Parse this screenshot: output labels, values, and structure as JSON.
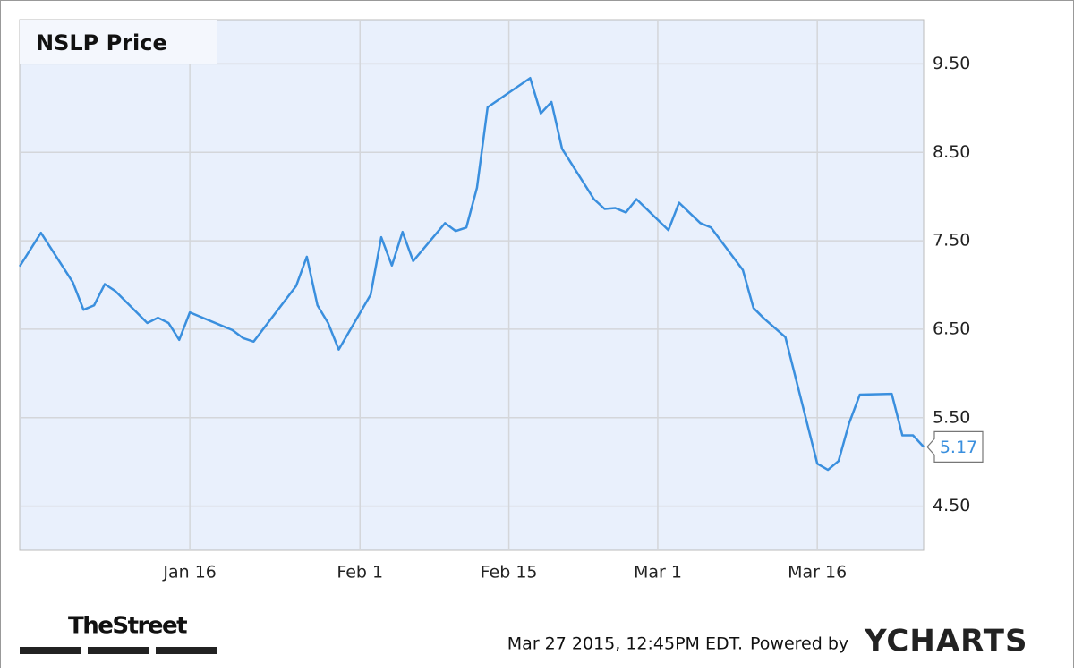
{
  "chart_data": {
    "type": "line",
    "title": "NSLP Price",
    "x": [
      "2014-12-31",
      "2015-01-02",
      "2015-01-05",
      "2015-01-06",
      "2015-01-07",
      "2015-01-08",
      "2015-01-09",
      "2015-01-12",
      "2015-01-13",
      "2015-01-14",
      "2015-01-15",
      "2015-01-16",
      "2015-01-20",
      "2015-01-21",
      "2015-01-22",
      "2015-01-26",
      "2015-01-27",
      "2015-01-28",
      "2015-01-29",
      "2015-01-30",
      "2015-02-02",
      "2015-02-03",
      "2015-02-04",
      "2015-02-05",
      "2015-02-06",
      "2015-02-09",
      "2015-02-10",
      "2015-02-11",
      "2015-02-12",
      "2015-02-13",
      "2015-02-17",
      "2015-02-18",
      "2015-02-19",
      "2015-02-20",
      "2015-02-23",
      "2015-02-24",
      "2015-02-25",
      "2015-02-26",
      "2015-02-27",
      "2015-03-02",
      "2015-03-03",
      "2015-03-05",
      "2015-03-06",
      "2015-03-09",
      "2015-03-10",
      "2015-03-11",
      "2015-03-13",
      "2015-03-16",
      "2015-03-17",
      "2015-03-18",
      "2015-03-19",
      "2015-03-20",
      "2015-03-23",
      "2015-03-24",
      "2015-03-25",
      "2015-03-26"
    ],
    "series": [
      {
        "name": "NSLP Price",
        "color": "#3a8fde",
        "values": [
          7.21,
          7.59,
          7.03,
          6.72,
          6.77,
          7.01,
          6.93,
          6.57,
          6.63,
          6.57,
          6.38,
          6.69,
          6.49,
          6.4,
          6.36,
          6.99,
          7.32,
          6.77,
          6.57,
          6.27,
          6.89,
          7.54,
          7.22,
          7.6,
          7.27,
          7.7,
          7.61,
          7.65,
          8.1,
          9.01,
          9.34,
          8.94,
          9.07,
          8.54,
          7.97,
          7.86,
          7.87,
          7.82,
          7.97,
          7.62,
          7.93,
          7.7,
          7.65,
          7.17,
          6.74,
          6.62,
          6.41,
          4.98,
          4.91,
          5.01,
          5.44,
          5.76,
          5.77,
          5.3,
          5.3,
          5.17
        ]
      }
    ],
    "xlim": [
      "2014-12-31",
      "2015-03-26"
    ],
    "xticks": [
      {
        "value": "2015-01-16",
        "label": "Jan 16"
      },
      {
        "value": "2015-02-01",
        "label": "Feb 1"
      },
      {
        "value": "2015-02-15",
        "label": "Feb 15"
      },
      {
        "value": "2015-03-01",
        "label": "Mar 1"
      },
      {
        "value": "2015-03-16",
        "label": "Mar 16"
      }
    ],
    "ylim": [
      4.0,
      10.0
    ],
    "yticks": [
      {
        "value": 4.5,
        "label": "4.50"
      },
      {
        "value": 5.5,
        "label": "5.50"
      },
      {
        "value": 6.5,
        "label": "6.50"
      },
      {
        "value": 7.5,
        "label": "7.50"
      },
      {
        "value": 8.5,
        "label": "8.50"
      },
      {
        "value": 9.5,
        "label": "9.50"
      }
    ],
    "grid": true,
    "logo": "TheStreet",
    "timestamp": "Mar 27 2015, 12:45PM EDT.",
    "powered_by": "Powered by",
    "brand": "YCHARTS"
  }
}
